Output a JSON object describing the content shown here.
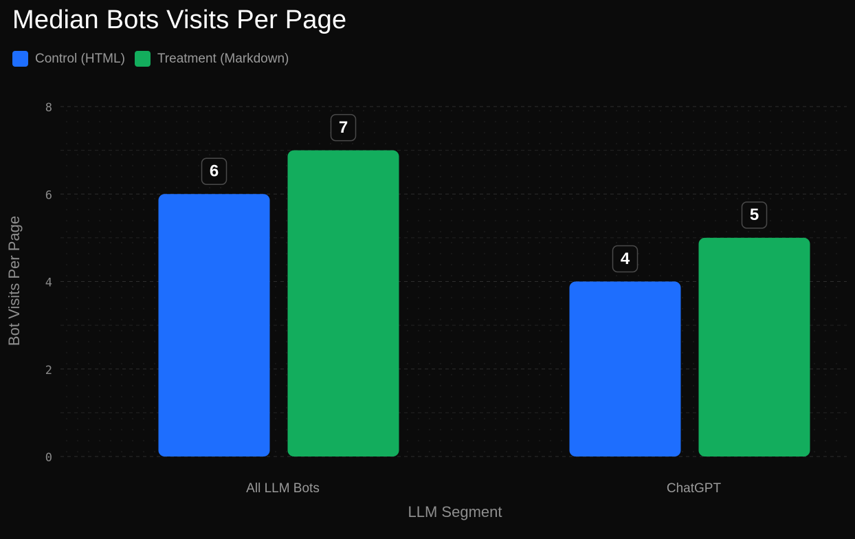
{
  "chart_data": {
    "type": "bar",
    "title": "Median Bots Visits Per Page",
    "xlabel": "LLM Segment",
    "ylabel": "Bot Visits Per Page",
    "categories": [
      "All LLM Bots",
      "ChatGPT"
    ],
    "series": [
      {
        "name": "Control (HTML)",
        "color": "#1e6efe",
        "values": [
          6,
          4
        ]
      },
      {
        "name": "Treatment (Markdown)",
        "color": "#13ad5d",
        "values": [
          7,
          5
        ]
      }
    ],
    "ylim": [
      0,
      8
    ],
    "yticks": [
      0,
      2,
      4,
      6,
      8
    ],
    "grid": true,
    "legend_position": "top-left",
    "data_labels": true
  }
}
